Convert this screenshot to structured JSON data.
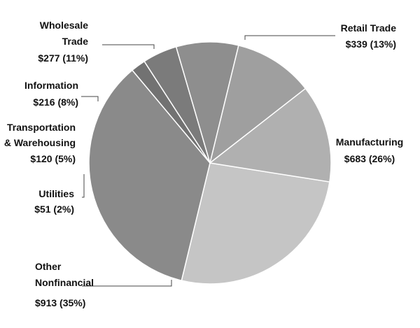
{
  "chart_data": {
    "type": "pie",
    "title": "",
    "slices": [
      {
        "label_lines": [
          "Manufacturing"
        ],
        "value_label": "$683 (26%)",
        "value": 683,
        "percent": 26,
        "color": "#c5c5c5"
      },
      {
        "label_lines": [
          "Other",
          "Nonfinancial"
        ],
        "value_label": "$913 (35%)",
        "value": 913,
        "percent": 35,
        "color": "#8a8a8a"
      },
      {
        "label_lines": [
          "Utilities"
        ],
        "value_label": "$51 (2%)",
        "value": 51,
        "percent": 2,
        "color": "#727272"
      },
      {
        "label_lines": [
          "Transportation",
          "& Warehousing"
        ],
        "value_label": "$120 (5%)",
        "value": 120,
        "percent": 5,
        "color": "#7b7b7b"
      },
      {
        "label_lines": [
          "Information"
        ],
        "value_label": "$216 (8%)",
        "value": 216,
        "percent": 8,
        "color": "#8e8e8e"
      },
      {
        "label_lines": [
          "Wholesale",
          "Trade"
        ],
        "value_label": "$277 (11%)",
        "value": 277,
        "percent": 11,
        "color": "#9f9f9f"
      },
      {
        "label_lines": [
          "Retail Trade"
        ],
        "value_label": "$339 (13%)",
        "value": 339,
        "percent": 13,
        "color": "#b0b0b0"
      }
    ]
  }
}
